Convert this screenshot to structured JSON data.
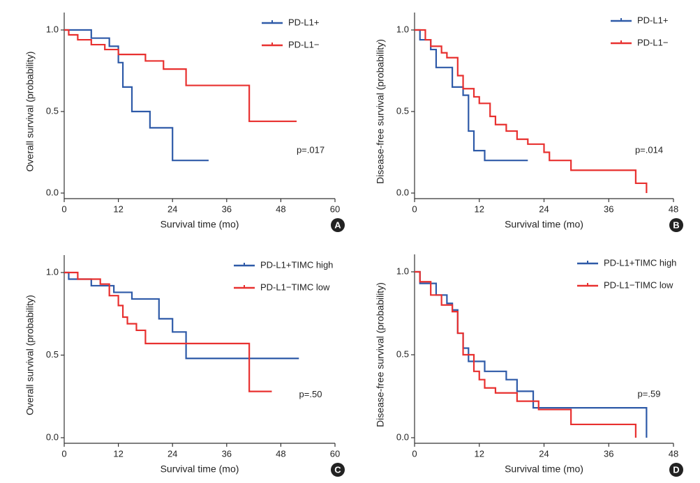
{
  "chart_data": [
    {
      "type": "line",
      "step": true,
      "panel": "A",
      "xlabel": "Survival time (mo)",
      "ylabel": "Overall survival (probability)",
      "annotation": "p=.017",
      "xlim": [
        0,
        60
      ],
      "xticks": [
        0,
        12,
        24,
        36,
        48,
        60
      ],
      "ylim": [
        0,
        1
      ],
      "yticks": [
        {
          "value": 0,
          "label": "0.0"
        },
        {
          "value": 0.5,
          "label": "0.5"
        },
        {
          "value": 1,
          "label": "1.0"
        }
      ],
      "series": [
        {
          "name": "PD-L1+",
          "color": "#2e5aa8",
          "x": [
            0,
            6,
            10,
            12,
            13,
            15,
            19,
            24,
            32
          ],
          "values": [
            1,
            0.95,
            0.9,
            0.8,
            0.65,
            0.5,
            0.4,
            0.2,
            0.2
          ]
        },
        {
          "name": "PD-L1−",
          "color": "#e8302f",
          "x": [
            0,
            1,
            3,
            6,
            9,
            12,
            18,
            22,
            27,
            41,
            51.5
          ],
          "values": [
            1,
            0.97,
            0.94,
            0.91,
            0.88,
            0.85,
            0.81,
            0.76,
            0.66,
            0.44,
            0.44
          ]
        }
      ]
    },
    {
      "type": "line",
      "step": true,
      "panel": "B",
      "xlabel": "Survival time (mo)",
      "ylabel": "Disease-free survival (probability)",
      "annotation": "p=.014",
      "xlim": [
        0,
        48
      ],
      "xticks": [
        0,
        12,
        24,
        36,
        48
      ],
      "ylim": [
        0,
        1
      ],
      "yticks": [
        {
          "value": 0,
          "label": "0.0"
        },
        {
          "value": 0.5,
          "label": "0.5"
        },
        {
          "value": 1,
          "label": "1.0"
        }
      ],
      "series": [
        {
          "name": "PD-L1+",
          "color": "#2e5aa8",
          "x": [
            0,
            1,
            3,
            4,
            7,
            9,
            10,
            11,
            13,
            21
          ],
          "values": [
            1,
            0.94,
            0.88,
            0.77,
            0.65,
            0.6,
            0.38,
            0.26,
            0.2,
            0.2
          ]
        },
        {
          "name": "PD-L1−",
          "color": "#e8302f",
          "x": [
            0,
            2,
            3,
            5,
            6,
            8,
            9,
            11,
            12,
            14,
            15,
            17,
            19,
            21,
            24,
            25,
            29,
            41,
            43
          ],
          "values": [
            1,
            0.94,
            0.9,
            0.86,
            0.83,
            0.72,
            0.64,
            0.59,
            0.55,
            0.47,
            0.42,
            0.38,
            0.33,
            0.3,
            0.25,
            0.2,
            0.14,
            0.06,
            0
          ]
        }
      ]
    },
    {
      "type": "line",
      "step": true,
      "panel": "C",
      "xlabel": "Survival time (mo)",
      "ylabel": "Overall survival (probability)",
      "annotation": "p=.50",
      "xlim": [
        0,
        60
      ],
      "xticks": [
        0,
        12,
        24,
        36,
        48,
        60
      ],
      "ylim": [
        0,
        1
      ],
      "yticks": [
        {
          "value": 0,
          "label": "0.0"
        },
        {
          "value": 0.5,
          "label": "0.5"
        },
        {
          "value": 1,
          "label": "1.0"
        }
      ],
      "series": [
        {
          "name": "PD-L1+TIMC high",
          "color": "#2e5aa8",
          "x": [
            0,
            1,
            6,
            11,
            15,
            21,
            24,
            27,
            52
          ],
          "values": [
            1,
            0.96,
            0.92,
            0.88,
            0.84,
            0.72,
            0.64,
            0.48,
            0.48
          ]
        },
        {
          "name": "PD-L1−TIMC low",
          "color": "#e8302f",
          "x": [
            0,
            3,
            8,
            10,
            12,
            13,
            14,
            16,
            18,
            41,
            46
          ],
          "values": [
            1,
            0.96,
            0.93,
            0.86,
            0.8,
            0.73,
            0.69,
            0.65,
            0.57,
            0.28,
            0.28
          ]
        }
      ]
    },
    {
      "type": "line",
      "step": true,
      "panel": "D",
      "xlabel": "Survival time (mo)",
      "ylabel": "Disease-free survival (probability)",
      "annotation": "p=.59",
      "xlim": [
        0,
        48
      ],
      "xticks": [
        0,
        12,
        24,
        36,
        48
      ],
      "ylim": [
        0,
        1
      ],
      "yticks": [
        {
          "value": 0,
          "label": "0.0"
        },
        {
          "value": 0.5,
          "label": "0.5"
        },
        {
          "value": 1,
          "label": "1.0"
        }
      ],
      "series": [
        {
          "name": "PD-L1+TIMC high",
          "color": "#2e5aa8",
          "x": [
            0,
            1,
            4,
            6,
            7,
            8,
            9,
            10,
            13,
            17,
            19,
            22,
            43
          ],
          "values": [
            1,
            0.93,
            0.86,
            0.81,
            0.77,
            0.63,
            0.54,
            0.46,
            0.4,
            0.35,
            0.28,
            0.18,
            0
          ]
        },
        {
          "name": "PD-L1−TIMC low",
          "color": "#e8302f",
          "x": [
            0,
            1,
            3,
            5,
            7,
            8,
            9,
            11,
            12,
            13,
            15,
            19,
            23,
            29,
            41
          ],
          "values": [
            1,
            0.94,
            0.86,
            0.8,
            0.76,
            0.63,
            0.5,
            0.4,
            0.35,
            0.3,
            0.27,
            0.22,
            0.17,
            0.08,
            0
          ]
        }
      ]
    }
  ]
}
